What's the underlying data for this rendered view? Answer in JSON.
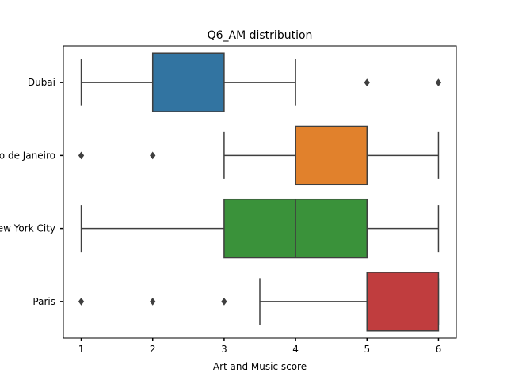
{
  "chart_data": {
    "type": "box",
    "title": "Q6_AM distribution",
    "xlabel": "Art and Music score",
    "ylabel": "",
    "xlim": [
      0.75,
      6.25
    ],
    "xticks": [
      1,
      2,
      3,
      4,
      5,
      6
    ],
    "grid": false,
    "orientation": "horizontal",
    "categories": [
      "Dubai",
      "Rio de Janeiro",
      "New York City",
      "Paris"
    ],
    "series": [
      {
        "category": "Dubai",
        "whisker_low": 1,
        "q1": 2,
        "median": 2,
        "q3": 3,
        "whisker_high": 4,
        "outliers": [
          5,
          6
        ],
        "color": "#3274a1"
      },
      {
        "category": "Rio de Janeiro",
        "whisker_low": 3,
        "q1": 4,
        "median": 4,
        "q3": 5,
        "whisker_high": 6,
        "outliers": [
          1,
          2
        ],
        "color": "#e1812c"
      },
      {
        "category": "New York City",
        "whisker_low": 1,
        "q1": 3,
        "median": 4,
        "q3": 5,
        "whisker_high": 6,
        "outliers": [],
        "color": "#3a923a"
      },
      {
        "category": "Paris",
        "whisker_low": 3.5,
        "q1": 5,
        "median": 5,
        "q3": 6,
        "whisker_high": 6,
        "outliers": [
          1,
          2,
          3
        ],
        "color": "#c03d3e"
      }
    ]
  }
}
